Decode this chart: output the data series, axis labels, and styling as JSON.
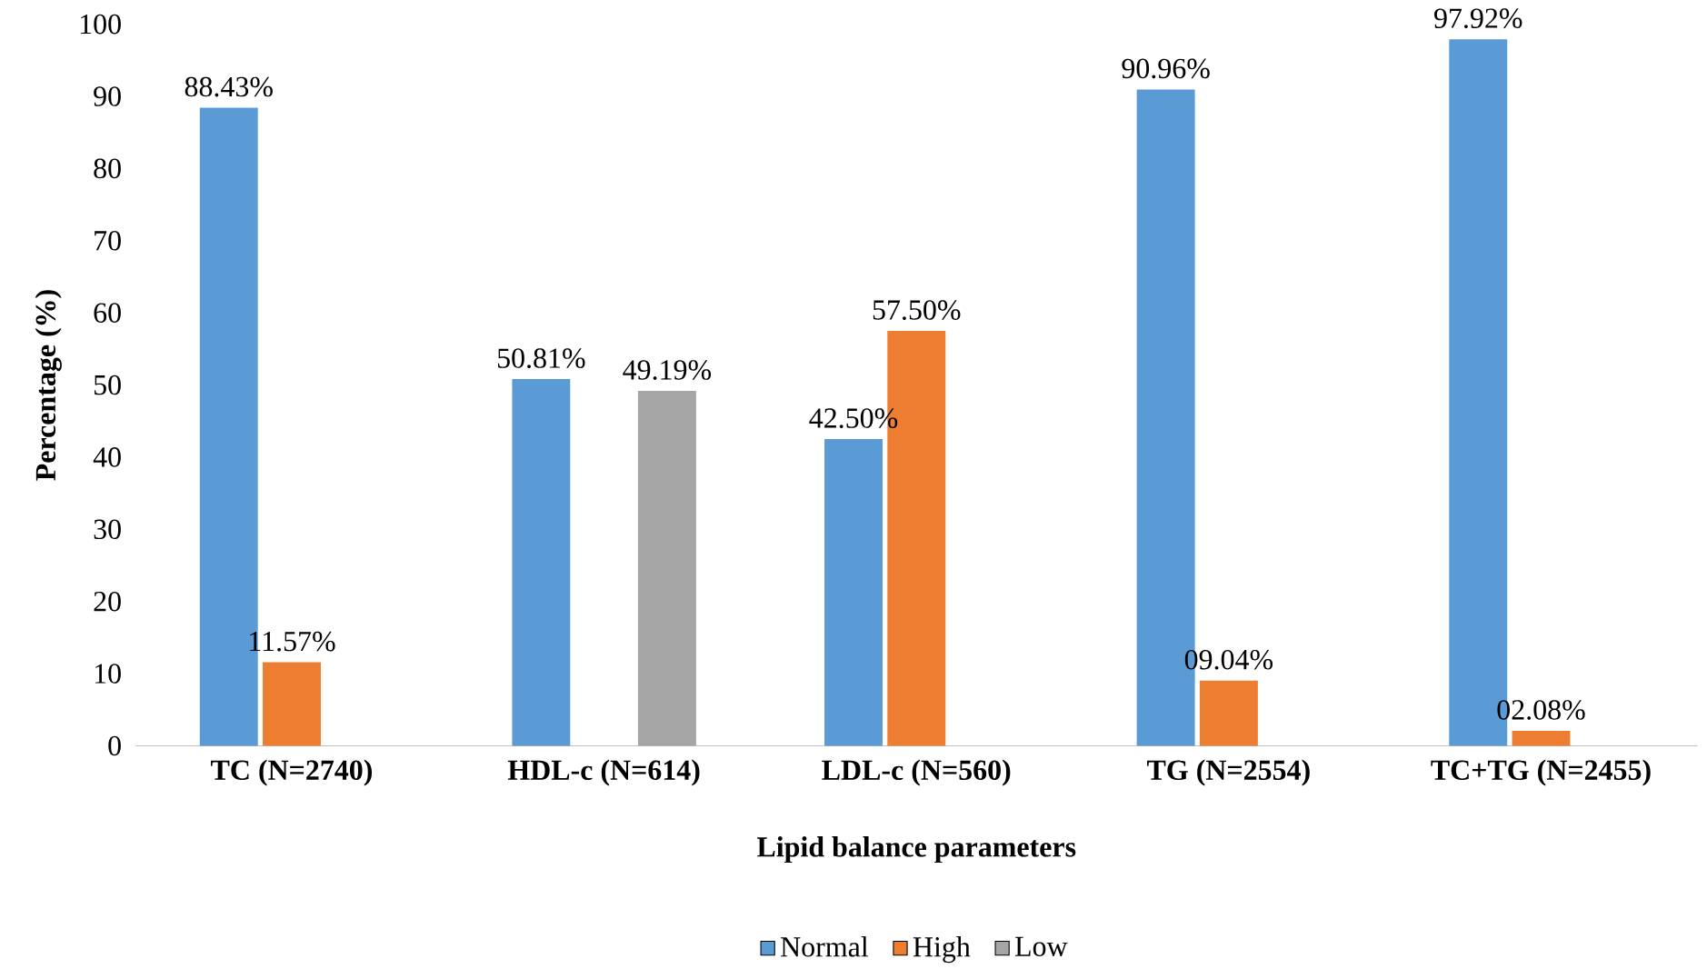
{
  "chart_data": {
    "type": "bar",
    "xlabel": "Lipid balance parameters",
    "ylabel": "Percentage (%)",
    "categories": [
      "TC (N=2740)",
      "HDL-c (N=614)",
      "LDL-c (N=560)",
      "TG (N=2554)",
      "TC+TG (N=2455)"
    ],
    "ylim": [
      0,
      100
    ],
    "yticks": [
      0,
      10,
      20,
      30,
      40,
      50,
      60,
      70,
      80,
      90,
      100
    ],
    "legend": "bottom",
    "grid": false,
    "series": [
      {
        "name": "Normal",
        "color": "#5b9bd5",
        "values": [
          88.43,
          50.81,
          42.5,
          90.96,
          97.92
        ],
        "value_labels": [
          "88.43%",
          "50.81%",
          "42.50%",
          "90.96%",
          "97.92%"
        ]
      },
      {
        "name": "High",
        "color": "#ed7d31",
        "values": [
          11.57,
          null,
          57.5,
          9.04,
          2.08
        ],
        "value_labels": [
          "11.57%",
          null,
          "57.50%",
          "09.04%",
          "02.08%"
        ]
      },
      {
        "name": "Low",
        "color": "#a5a5a5",
        "values": [
          null,
          49.19,
          null,
          null,
          null
        ],
        "value_labels": [
          null,
          "49.19%",
          null,
          null,
          null
        ]
      }
    ]
  }
}
